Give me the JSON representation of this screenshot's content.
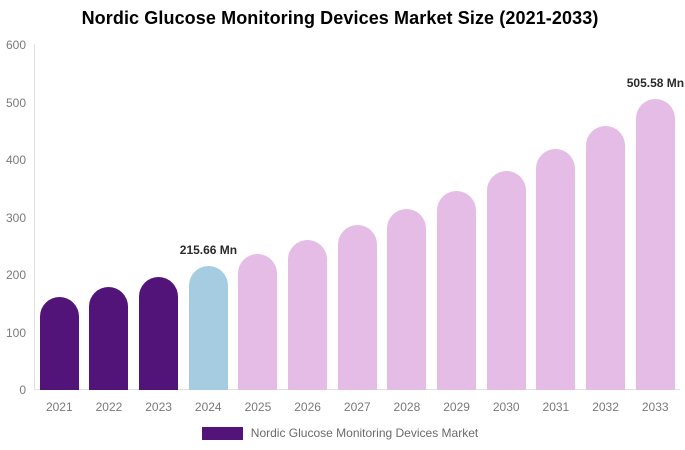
{
  "title": "Nordic Glucose Monitoring Devices Market Size (2021-2033)",
  "legend": {
    "label": "Nordic Glucose Monitoring Devices Market",
    "swatch_color": "#531479"
  },
  "colors": {
    "historical": "#531479",
    "base": "#a5cce1",
    "forecast": "#e5bce5",
    "axis_line": "#e0e0e0",
    "axis_text": "#7a7a7a",
    "data_label_text": "#2b2b2b",
    "title_text": "#000000",
    "background": "#ffffff"
  },
  "chart_data": {
    "type": "bar",
    "title": "Nordic Glucose Monitoring Devices Market Size (2021-2033)",
    "unit": "Mn",
    "series_name": "Nordic Glucose Monitoring Devices Market",
    "categories": [
      "2021",
      "2022",
      "2023",
      "2024",
      "2025",
      "2026",
      "2027",
      "2028",
      "2029",
      "2030",
      "2031",
      "2032",
      "2033"
    ],
    "values": [
      162.34,
      178.46,
      196.18,
      215.66,
      237.07,
      260.61,
      286.49,
      314.93,
      346.2,
      380.57,
      418.37,
      459.91,
      505.58
    ],
    "roles": [
      "historical",
      "historical",
      "historical",
      "base",
      "forecast",
      "forecast",
      "forecast",
      "forecast",
      "forecast",
      "forecast",
      "forecast",
      "forecast",
      "forecast"
    ],
    "annotations": [
      {
        "category": "2024",
        "text": "215.66 Mn"
      },
      {
        "category": "2033",
        "text": "505.58 Mn"
      }
    ],
    "xlabel": "",
    "ylabel": "",
    "ylim": [
      0,
      600
    ],
    "yticks": [
      0,
      100,
      200,
      300,
      400,
      500,
      600
    ],
    "grid": false,
    "legend_position": "bottom"
  }
}
